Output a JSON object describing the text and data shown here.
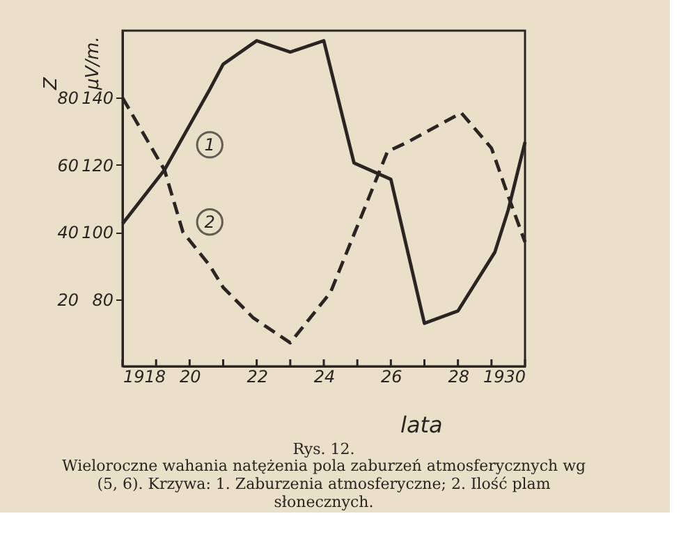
{
  "chart_data": {
    "type": "line",
    "xlabel": "lata",
    "ylabel": "μV/m.",
    "y2label": "Z",
    "series": [
      {
        "name": null,
        "color": "#2a2522",
        "line_style": "solid",
        "x": [
          1918,
          1919.25,
          1920.6,
          1921,
          1922,
          1923,
          1924,
          1924.9,
          1926,
          1927,
          1928,
          1929.1,
          1929.5,
          1930
        ],
        "values": [
          102.5,
          118.5,
          142.5,
          150,
          157,
          153.6,
          157,
          120.6,
          115.7,
          72.8,
          76.5,
          94,
          106.6,
          126.8
        ]
      },
      {
        "name": null,
        "color": "#2a2522",
        "line_style": "dashed",
        "axis": "y2",
        "x": [
          1918,
          1919.25,
          1919.8,
          1920.6,
          1921,
          1921.9,
          1923,
          1924.2,
          1925.9,
          1926.5,
          1928.1,
          1929,
          1929.5,
          1930
        ],
        "values": [
          80,
          58.5,
          40,
          30,
          23.5,
          14.4,
          7,
          22,
          64,
          66.8,
          75.5,
          65,
          50.7,
          37
        ]
      }
    ],
    "xlim": [
      1918,
      1930
    ],
    "xticks": [
      1918,
      {
        "value": 1919,
        "label": null
      },
      {
        "value": 1920,
        "label": "20"
      },
      {
        "value": 1921,
        "label": null
      },
      {
        "value": 1922,
        "label": "22"
      },
      {
        "value": 1923,
        "label": null
      },
      {
        "value": 1924,
        "label": "24"
      },
      {
        "value": 1925,
        "label": null
      },
      {
        "value": 1926,
        "label": "26"
      },
      {
        "value": 1927,
        "label": null
      },
      {
        "value": 1928,
        "label": "28"
      },
      {
        "value": 1929,
        "label": null
      },
      1930
    ],
    "ylim": [
      60,
      160
    ],
    "yticks": [
      80,
      100,
      120,
      140
    ],
    "y2lim": [
      0,
      100
    ],
    "y2ticks": [
      20,
      40,
      60,
      80
    ],
    "grid": false,
    "marker": "none",
    "annotations": [
      {
        "text": "1",
        "x": 1920.6,
        "y": 126
      },
      {
        "text": "2",
        "x": 1920.6,
        "y": 103
      },
      "Rys. 12.",
      "Wieloroczne wahania natężenia pola zaburzeń atmosferycznych wg (5, 6). Krzywa: 1. Zaburzenia atmosferyczne; 2. Ilość plam słonecznych."
    ]
  }
}
